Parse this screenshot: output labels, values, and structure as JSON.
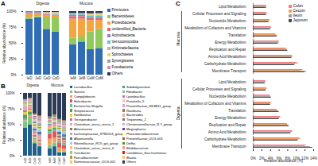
{
  "chart_data": [
    {
      "type": "bar",
      "title": "A",
      "stacked": true,
      "legend": "right",
      "categories": [
        "IeD",
        "JeD",
        "CeD",
        "CoD",
        "IeM",
        "JeM",
        "CeM",
        "CoM"
      ],
      "groups": [
        "Digesta",
        "Digesta",
        "Digesta",
        "Digesta",
        "Mucous",
        "Mucous",
        "Mucous",
        "Mucous"
      ],
      "ylabel": "Relative abundance (%)",
      "ylim": [
        0,
        100
      ],
      "yticks": [
        {
          "value": 0,
          "label": "0%"
        },
        {
          "value": 25,
          "label": "25%"
        },
        {
          "value": 50,
          "label": "50%"
        },
        {
          "value": 75,
          "label": "75%"
        },
        {
          "value": 100,
          "label": "100%"
        }
      ],
      "series": [
        {
          "name": "Firmicutes",
          "color": "#2f6eb5",
          "values": [
            88,
            90,
            72,
            68,
            48,
            52,
            40,
            42
          ]
        },
        {
          "name": "Bacteroidetes",
          "color": "#8fca5a",
          "values": [
            3,
            2,
            18,
            22,
            10,
            8,
            28,
            30
          ]
        },
        {
          "name": "Proteobacteria",
          "color": "#f2a541",
          "values": [
            5,
            4,
            4,
            3,
            30,
            28,
            18,
            14
          ]
        },
        {
          "name": "unidentified_Bacteria",
          "color": "#e46a6a",
          "values": [
            1,
            1,
            1,
            1,
            4,
            4,
            3,
            3
          ]
        },
        {
          "name": "Actinobacteria",
          "color": "#9b7fc6",
          "values": [
            1.5,
            1.5,
            0.5,
            0.5,
            2,
            2,
            1,
            1
          ]
        },
        {
          "name": "Verrucomicrobia",
          "color": "#5fc3c9",
          "values": [
            0.3,
            0.3,
            1,
            1,
            1,
            1,
            3,
            3
          ]
        },
        {
          "name": "Kiritimatiellaeota",
          "color": "#c7b299",
          "values": [
            0.1,
            0.1,
            0.5,
            1,
            0.2,
            0.2,
            1,
            1
          ]
        },
        {
          "name": "Spirochaetes",
          "color": "#f4d35e",
          "values": [
            0.1,
            0.1,
            1,
            1.5,
            0.2,
            0.2,
            1.5,
            2
          ]
        },
        {
          "name": "Synergistetes",
          "color": "#a0a0a0",
          "values": [
            0.1,
            0.1,
            0.5,
            0.5,
            0.6,
            0.6,
            0.5,
            0.5
          ]
        },
        {
          "name": "Fusobacteria",
          "color": "#d98cb3",
          "values": [
            0.2,
            0.2,
            0.2,
            0.2,
            1,
            1,
            0.5,
            0.5
          ]
        },
        {
          "name": "Others",
          "color": "#2b3a55",
          "values": [
            0.7,
            0.7,
            1.3,
            1.3,
            3,
            3,
            3.5,
            3
          ]
        }
      ]
    },
    {
      "type": "bar",
      "title": "B",
      "stacked": true,
      "legend": "right",
      "categories": [
        "IeD",
        "JeD",
        "CeD",
        "CoD",
        "IeM",
        "JeM",
        "CeM",
        "CoM"
      ],
      "groups": [
        "Digesta",
        "Digesta",
        "Digesta",
        "Digesta",
        "Mucous",
        "Mucous",
        "Mucous",
        "Mucous"
      ],
      "ylabel": "Relative abundance (%)",
      "ylim": [
        0,
        100
      ],
      "yticks": [
        {
          "value": 0,
          "label": "0%"
        },
        {
          "value": 25,
          "label": "25%"
        },
        {
          "value": 50,
          "label": "50%"
        },
        {
          "value": 75,
          "label": "75%"
        },
        {
          "value": 100,
          "label": "100%"
        }
      ],
      "series": [
        {
          "name": "Lactobacillus",
          "color": "#1f5f8b",
          "values": [
            45,
            50,
            20,
            15,
            12,
            15,
            5,
            5
          ]
        },
        {
          "name": "Sarcina",
          "color": "#7fc97f",
          "values": [
            10,
            12,
            3,
            2,
            5,
            6,
            2,
            2
          ]
        },
        {
          "name": "Campylobacter",
          "color": "#f0a35e",
          "values": [
            1,
            1,
            2,
            1,
            10,
            8,
            6,
            4
          ]
        },
        {
          "name": "Helicobacter",
          "color": "#e15759",
          "values": [
            0.5,
            0.5,
            1,
            1,
            8,
            10,
            8,
            6
          ]
        },
        {
          "name": "Escherichia-Shigella",
          "color": "#76b7b2",
          "values": [
            3,
            2,
            1,
            1,
            4,
            3,
            2,
            2
          ]
        },
        {
          "name": "Streptococcus",
          "color": "#59a14f",
          "values": [
            6,
            5,
            1,
            1,
            3,
            3,
            1,
            1
          ]
        },
        {
          "name": "Romboutsia",
          "color": "#edc948",
          "values": [
            4,
            3,
            2,
            2,
            2,
            2,
            1,
            1
          ]
        },
        {
          "name": "Terrisporobacter",
          "color": "#b07aa1",
          "values": [
            3,
            2,
            3,
            3,
            1,
            1,
            2,
            2
          ]
        },
        {
          "name": "Clostridium_sensu_stricto_1",
          "color": "#ff9da7",
          "values": [
            5,
            4,
            4,
            4,
            3,
            3,
            2,
            2
          ]
        },
        {
          "name": "Akkermansia",
          "color": "#9c755f",
          "values": [
            0.5,
            0.5,
            1,
            1,
            1,
            1,
            3,
            3
          ]
        },
        {
          "name": "Lachnospiraceae_XPB1014_group",
          "color": "#bab0ac",
          "values": [
            0.5,
            0.5,
            2,
            3,
            0.5,
            0.5,
            2,
            2
          ]
        },
        {
          "name": "Alloprevotella",
          "color": "#4e79a7",
          "values": [
            0.5,
            0.5,
            3,
            4,
            1,
            1,
            4,
            4
          ]
        },
        {
          "name": "Rikenellaceae_RC9_gut_group",
          "color": "#a0cbe8",
          "values": [
            0.5,
            0.5,
            3,
            4,
            0.5,
            0.5,
            3,
            4
          ]
        },
        {
          "name": "Clostridium_sensu_stricto_6",
          "color": "#ffbe7d",
          "values": [
            2,
            2,
            1,
            1,
            1,
            1,
            1,
            1
          ]
        },
        {
          "name": "Turicibacter",
          "color": "#8cd17d",
          "values": [
            2,
            2,
            1,
            1,
            1,
            1,
            0.5,
            0.5
          ]
        },
        {
          "name": "Faecalibacterium",
          "color": "#b6992d",
          "values": [
            0.5,
            0.5,
            2,
            2,
            0.5,
            0.5,
            2,
            2
          ]
        },
        {
          "name": "Ruminococcaceae_UCG-005",
          "color": "#f1ce63",
          "values": [
            0.5,
            0.5,
            2,
            2,
            0.5,
            0.5,
            1,
            2
          ]
        },
        {
          "name": "Subdoligranulum",
          "color": "#499894",
          "values": [
            0.5,
            0.5,
            2,
            2,
            0.5,
            0.5,
            1,
            1
          ]
        },
        {
          "name": "Fibrobacter",
          "color": "#86bcb6",
          "values": [
            0.2,
            0.2,
            1,
            2,
            0.2,
            0.2,
            1,
            1
          ]
        },
        {
          "name": "Lysinibacillus",
          "color": "#d37295",
          "values": [
            1,
            1,
            0.5,
            0.5,
            2,
            2,
            1,
            1
          ]
        },
        {
          "name": "Prevotella_9",
          "color": "#fabfd2",
          "values": [
            0.5,
            0.5,
            2,
            2,
            0.5,
            0.5,
            2,
            2
          ]
        },
        {
          "name": "Prevotellaceae_NK3B31_group",
          "color": "#d4a6c8",
          "values": [
            0.3,
            0.3,
            1,
            1,
            0.3,
            0.3,
            1,
            1
          ]
        },
        {
          "name": "Roseburia",
          "color": "#9d7660",
          "values": [
            0.3,
            0.3,
            1,
            1,
            0.3,
            0.3,
            1,
            1
          ]
        },
        {
          "name": "Bacteroides",
          "color": "#d7b5a6",
          "values": [
            0.3,
            0.3,
            1,
            1,
            0.5,
            0.5,
            1,
            1
          ]
        },
        {
          "name": "Treponema_2",
          "color": "#79706e",
          "values": [
            0.2,
            0.2,
            1,
            1,
            0.2,
            0.2,
            1,
            1
          ]
        },
        {
          "name": "Christensenellaceae_R-7_group",
          "color": "#c9b2d6",
          "values": [
            0.2,
            0.2,
            1,
            1,
            0.2,
            0.2,
            0.5,
            0.5
          ]
        },
        {
          "name": "Megasphaera",
          "color": "#6a3d9a",
          "values": [
            0.5,
            0.5,
            1,
            1,
            0.3,
            0.3,
            0.5,
            0.5
          ]
        },
        {
          "name": "Phascolarctobacterium",
          "color": "#ffff99",
          "values": [
            0.2,
            0.2,
            1,
            1,
            0.2,
            0.2,
            0.5,
            0.5
          ]
        },
        {
          "name": "Prevotellaceae_UCG-003",
          "color": "#b15928",
          "values": [
            0.2,
            0.2,
            1,
            1,
            0.2,
            0.2,
            0.5,
            0.5
          ]
        },
        {
          "name": "Delftia",
          "color": "#33a02c",
          "values": [
            0.2,
            0.2,
            0.2,
            0.2,
            2,
            2,
            1,
            1
          ]
        },
        {
          "name": "Bifidobacterium",
          "color": "#fb9a99",
          "values": [
            0.5,
            0.5,
            0.3,
            0.3,
            0.3,
            0.3,
            0.2,
            0.2
          ]
        },
        {
          "name": "Candidatus_Saccharimonas",
          "color": "#e31a1c",
          "values": [
            0.2,
            0.2,
            0.3,
            0.3,
            0.5,
            0.5,
            0.5,
            0.5
          ]
        },
        {
          "name": "Blautia",
          "color": "#fdbf6f",
          "values": [
            0.2,
            0.2,
            0.5,
            0.5,
            0.2,
            0.2,
            0.3,
            0.3
          ]
        },
        {
          "name": "Others",
          "color": "#2b3a55",
          "values": [
            10,
            8,
            33.2,
            36.2,
            37.6,
            34.6,
            41.5,
            43.5
          ]
        }
      ]
    },
    {
      "type": "bar",
      "title": "C",
      "orientation": "horizontal",
      "legend": "top-right",
      "categories": [
        "Lipid Metabolism",
        "Cellular Processes and Signaling",
        "Nucleotide Metabolism",
        "Metabolism of Cofactors and Vitamins",
        "Translation",
        "Energy Metabolism",
        "Replication and Repair",
        "Amino Acid Metabolism",
        "Carbohydrate Metabolism",
        "Membrane Transport"
      ],
      "xlabel": "Relative abundance (%)",
      "xlim": [
        0,
        14
      ],
      "xticks": [
        {
          "value": 0,
          "label": "0%"
        },
        {
          "value": 2,
          "label": "2%"
        },
        {
          "value": 4,
          "label": "4%"
        },
        {
          "value": 6,
          "label": "6%"
        },
        {
          "value": 8,
          "label": "8%"
        },
        {
          "value": 10,
          "label": "10%"
        },
        {
          "value": 12,
          "label": "12%"
        },
        {
          "value": 14,
          "label": "14%"
        }
      ],
      "panels": [
        {
          "name": "Mucosa",
          "series": [
            {
              "name": "Colon",
              "color": "#f07c8c",
              "values": [
                3.0,
                3.2,
                3.8,
                4.2,
                5.2,
                6.0,
                7.6,
                9.0,
                10.2,
                11.5
              ]
            },
            {
              "name": "Cecum",
              "color": "#f5a35c",
              "values": [
                3.1,
                3.3,
                3.9,
                4.3,
                5.4,
                6.1,
                7.8,
                9.2,
                10.4,
                11.2
              ]
            },
            {
              "name": "Ileum",
              "color": "#9e9e9e",
              "values": [
                3.2,
                3.0,
                3.7,
                4.0,
                5.6,
                5.9,
                7.9,
                9.1,
                9.8,
                12.4
              ]
            },
            {
              "name": "Jejunum",
              "color": "#4d4d4d",
              "values": [
                3.0,
                3.1,
                3.6,
                4.1,
                5.5,
                5.8,
                8.0,
                8.9,
                9.6,
                12.0
              ]
            }
          ]
        },
        {
          "name": "Digesta",
          "series": [
            {
              "name": "Colon",
              "color": "#f07c8c",
              "values": [
                2.9,
                3.1,
                3.9,
                4.1,
                5.5,
                6.3,
                7.9,
                9.1,
                10.8,
                12.3
              ]
            },
            {
              "name": "Cecum",
              "color": "#f5a35c",
              "values": [
                3.0,
                3.2,
                4.0,
                4.2,
                5.6,
                6.4,
                8.0,
                9.2,
                11.0,
                12.0
              ]
            },
            {
              "name": "Ileum",
              "color": "#9e9e9e",
              "values": [
                2.7,
                3.0,
                4.1,
                4.0,
                5.9,
                6.1,
                8.2,
                8.8,
                10.5,
                13.2
              ]
            },
            {
              "name": "Jejunum",
              "color": "#4d4d4d",
              "values": [
                2.8,
                3.0,
                4.2,
                4.0,
                6.0,
                6.0,
                8.3,
                8.7,
                10.4,
                13.8
              ]
            }
          ]
        }
      ]
    }
  ]
}
